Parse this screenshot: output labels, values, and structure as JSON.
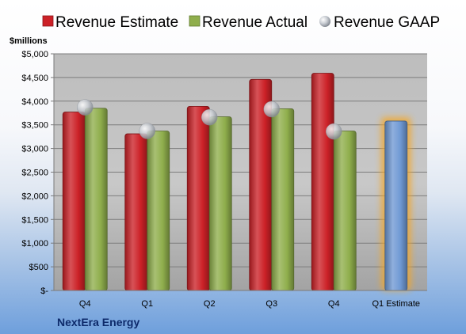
{
  "chart_data": {
    "type": "bar",
    "company": "NextEra Energy",
    "unit_label": "$millions",
    "categories": [
      "Q4",
      "Q1",
      "Q2",
      "Q3",
      "Q4",
      "Q1 Estimate"
    ],
    "series": [
      {
        "name": "Revenue Estimate",
        "color": "#cc2127",
        "values": [
          3770,
          3310,
          3890,
          4460,
          4590,
          null
        ]
      },
      {
        "name": "Revenue Actual",
        "color": "#8fae4c",
        "values": [
          3850,
          3370,
          3670,
          3840,
          3370,
          null
        ]
      },
      {
        "name": "Revenue GAAP",
        "color": "#b7bcc4",
        "marker": "circle",
        "values": [
          3870,
          3370,
          3660,
          3830,
          3360,
          null
        ]
      },
      {
        "name": "Q1 Estimate",
        "color": "#6f99d4",
        "highlight": "#f5a623",
        "values": [
          null,
          null,
          null,
          null,
          null,
          3580
        ]
      }
    ],
    "ylim": [
      0,
      5000
    ],
    "y_ticks": [
      0,
      500,
      1000,
      1500,
      2000,
      2500,
      3000,
      3500,
      4000,
      4500,
      5000
    ],
    "y_tick_labels": [
      "$-",
      "$500",
      "$1,000",
      "$1,500",
      "$2,000",
      "$2,500",
      "$3,000",
      "$3,500",
      "$4,000",
      "$4,500",
      "$5,000"
    ],
    "grid": true,
    "legend_position": "top"
  }
}
